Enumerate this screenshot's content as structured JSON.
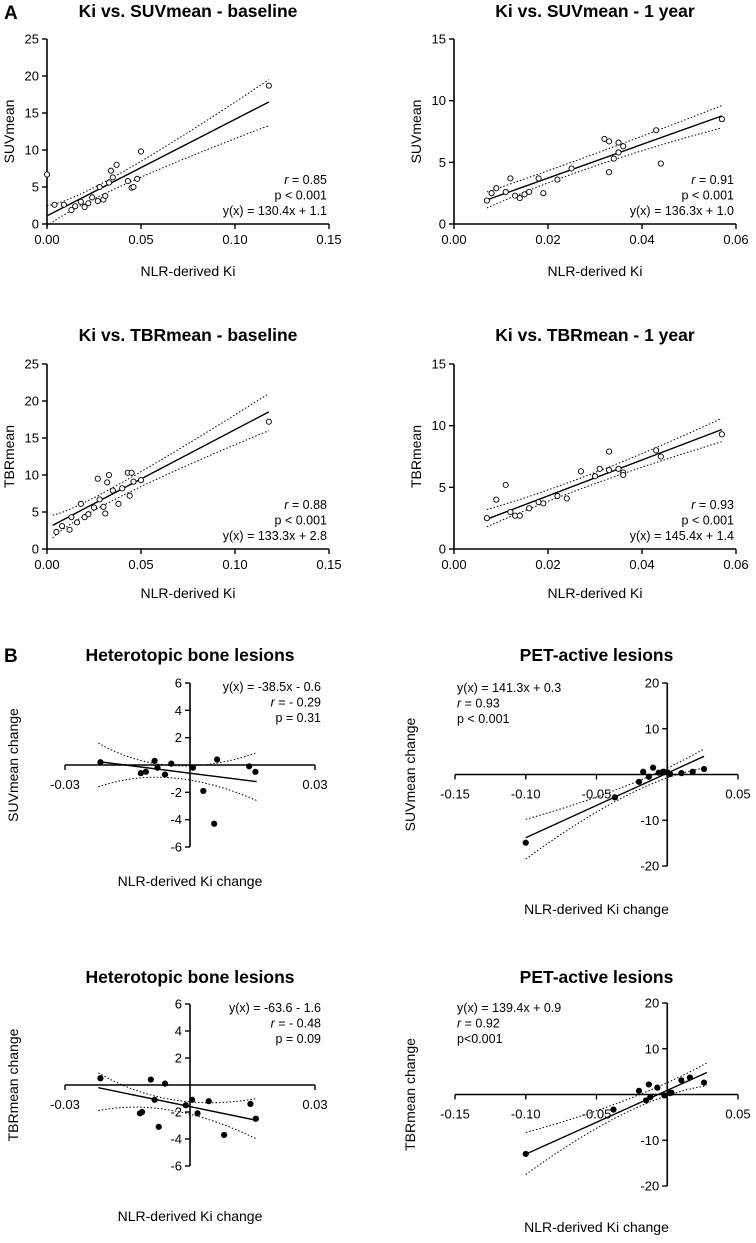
{
  "panel_labels": {
    "a": "A",
    "b": "B"
  },
  "chart_data": [
    {
      "id": "a1",
      "type": "scatter",
      "title": "Ki vs. SUVmean - baseline",
      "xlabel": "NLR-derived Ki",
      "ylabel": "SUVmean",
      "xlim": [
        0,
        0.15
      ],
      "ylim": [
        0,
        25
      ],
      "xticks": [
        0,
        0.05,
        0.1,
        0.15
      ],
      "xticklabels": [
        "0.00",
        "0.05",
        "0.10",
        "0.15"
      ],
      "yticks": [
        0,
        5,
        10,
        15,
        20,
        25
      ],
      "yticklabels": [
        "0",
        "5",
        "10",
        "15",
        "20",
        "25"
      ],
      "marker": "open",
      "points": [
        [
          0.0,
          6.7
        ],
        [
          0.004,
          2.6
        ],
        [
          0.009,
          2.6
        ],
        [
          0.013,
          1.9
        ],
        [
          0.015,
          2.4
        ],
        [
          0.018,
          3.0
        ],
        [
          0.02,
          2.3
        ],
        [
          0.022,
          2.8
        ],
        [
          0.024,
          3.6
        ],
        [
          0.027,
          3.1
        ],
        [
          0.028,
          5.0
        ],
        [
          0.03,
          3.3
        ],
        [
          0.031,
          3.8
        ],
        [
          0.033,
          5.6
        ],
        [
          0.034,
          7.2
        ],
        [
          0.035,
          6.3
        ],
        [
          0.037,
          8.0
        ],
        [
          0.043,
          5.8
        ],
        [
          0.045,
          4.9
        ],
        [
          0.046,
          5.0
        ],
        [
          0.048,
          6.1
        ],
        [
          0.05,
          9.8
        ],
        [
          0.118,
          18.7
        ]
      ],
      "fit": {
        "slope": 130.4,
        "intercept": 1.1,
        "x_range": [
          0.0,
          0.118
        ]
      },
      "ci": {
        "lower": [
          [
            0.0,
            -0.3
          ],
          [
            0.04,
            5.2
          ],
          [
            0.118,
            13.3
          ]
        ],
        "upper": [
          [
            0.0,
            2.5
          ],
          [
            0.04,
            7.0
          ],
          [
            0.118,
            19.5
          ]
        ]
      },
      "stats": {
        "r_label": "r",
        "r_value": " = 0.85",
        "p": "p < 0.001",
        "eq": "y(x) = 130.4x + 1.1"
      },
      "stats_pos": "bottom-right"
    },
    {
      "id": "a2",
      "type": "scatter",
      "title": "Ki vs. SUVmean - 1 year",
      "xlabel": "NLR-derived Ki",
      "ylabel": "SUVmean",
      "xlim": [
        0,
        0.06
      ],
      "ylim": [
        0,
        15
      ],
      "xticks": [
        0,
        0.02,
        0.04,
        0.06
      ],
      "xticklabels": [
        "0.00",
        "0.02",
        "0.04",
        "0.06"
      ],
      "yticks": [
        0,
        5,
        10,
        15
      ],
      "yticklabels": [
        "0",
        "5",
        "10",
        "15"
      ],
      "marker": "open",
      "points": [
        [
          0.007,
          1.9
        ],
        [
          0.008,
          2.5
        ],
        [
          0.009,
          2.9
        ],
        [
          0.011,
          2.6
        ],
        [
          0.012,
          3.7
        ],
        [
          0.013,
          2.3
        ],
        [
          0.014,
          2.1
        ],
        [
          0.015,
          2.4
        ],
        [
          0.016,
          2.6
        ],
        [
          0.018,
          3.7
        ],
        [
          0.019,
          2.5
        ],
        [
          0.022,
          3.6
        ],
        [
          0.025,
          4.5
        ],
        [
          0.032,
          6.9
        ],
        [
          0.033,
          4.2
        ],
        [
          0.033,
          6.7
        ],
        [
          0.034,
          5.3
        ],
        [
          0.035,
          5.8
        ],
        [
          0.035,
          6.6
        ],
        [
          0.036,
          6.3
        ],
        [
          0.043,
          7.6
        ],
        [
          0.044,
          4.9
        ],
        [
          0.057,
          8.5
        ]
      ],
      "fit": {
        "slope": 136.3,
        "intercept": 1.0,
        "x_range": [
          0.007,
          0.057
        ]
      },
      "ci": {
        "lower": [
          [
            0.007,
            1.3
          ],
          [
            0.03,
            4.7
          ],
          [
            0.057,
            7.8
          ]
        ],
        "upper": [
          [
            0.007,
            2.6
          ],
          [
            0.03,
            5.7
          ],
          [
            0.057,
            9.6
          ]
        ]
      },
      "stats": {
        "r_label": "r",
        "r_value": " = 0.91",
        "p": "p < 0.001",
        "eq": "y(x) = 136.3x + 1.0"
      },
      "stats_pos": "bottom-right"
    },
    {
      "id": "a3",
      "type": "scatter",
      "title": "Ki vs. TBRmean - baseline",
      "xlabel": "NLR-derived Ki",
      "ylabel": "TBRmean",
      "xlim": [
        0,
        0.15
      ],
      "ylim": [
        0,
        25
      ],
      "xticks": [
        0,
        0.05,
        0.1,
        0.15
      ],
      "xticklabels": [
        "0.00",
        "0.05",
        "0.10",
        "0.15"
      ],
      "yticks": [
        0,
        5,
        10,
        15,
        20,
        25
      ],
      "yticklabels": [
        "0",
        "5",
        "10",
        "15",
        "20",
        "25"
      ],
      "marker": "open",
      "points": [
        [
          0.005,
          2.3
        ],
        [
          0.008,
          3.1
        ],
        [
          0.012,
          2.6
        ],
        [
          0.013,
          4.3
        ],
        [
          0.016,
          3.6
        ],
        [
          0.018,
          6.1
        ],
        [
          0.02,
          4.3
        ],
        [
          0.022,
          4.7
        ],
        [
          0.025,
          5.6
        ],
        [
          0.027,
          9.5
        ],
        [
          0.028,
          6.7
        ],
        [
          0.03,
          5.7
        ],
        [
          0.031,
          4.8
        ],
        [
          0.032,
          9.0
        ],
        [
          0.033,
          10.0
        ],
        [
          0.035,
          7.9
        ],
        [
          0.038,
          6.1
        ],
        [
          0.04,
          8.2
        ],
        [
          0.043,
          10.3
        ],
        [
          0.044,
          7.2
        ],
        [
          0.045,
          10.3
        ],
        [
          0.046,
          9.1
        ],
        [
          0.05,
          9.3
        ],
        [
          0.118,
          17.2
        ]
      ],
      "fit": {
        "slope": 133.3,
        "intercept": 2.8,
        "x_range": [
          0.003,
          0.118
        ]
      },
      "ci": {
        "lower": [
          [
            0.003,
            1.5
          ],
          [
            0.04,
            7.2
          ],
          [
            0.118,
            16.0
          ]
        ],
        "upper": [
          [
            0.003,
            4.6
          ],
          [
            0.04,
            9.0
          ],
          [
            0.118,
            21.0
          ]
        ]
      },
      "stats": {
        "r_label": "r",
        "r_value": " = 0.88",
        "p": "p < 0.001",
        "eq": "y(x) = 133.3x + 2.8"
      },
      "stats_pos": "bottom-right"
    },
    {
      "id": "a4",
      "type": "scatter",
      "title": "Ki vs. TBRmean - 1 year",
      "xlabel": "NLR-derived Ki",
      "ylabel": "TBRmean",
      "xlim": [
        0,
        0.06
      ],
      "ylim": [
        0,
        15
      ],
      "xticks": [
        0,
        0.02,
        0.04,
        0.06
      ],
      "xticklabels": [
        "0.00",
        "0.02",
        "0.04",
        "0.06"
      ],
      "yticks": [
        0,
        5,
        10,
        15
      ],
      "yticklabels": [
        "0",
        "5",
        "10",
        "15"
      ],
      "marker": "open",
      "points": [
        [
          0.007,
          2.5
        ],
        [
          0.009,
          4.0
        ],
        [
          0.011,
          5.2
        ],
        [
          0.012,
          3.0
        ],
        [
          0.013,
          2.7
        ],
        [
          0.014,
          2.7
        ],
        [
          0.016,
          3.3
        ],
        [
          0.018,
          3.8
        ],
        [
          0.019,
          3.7
        ],
        [
          0.022,
          4.3
        ],
        [
          0.024,
          4.1
        ],
        [
          0.027,
          6.3
        ],
        [
          0.03,
          5.9
        ],
        [
          0.031,
          6.5
        ],
        [
          0.033,
          7.9
        ],
        [
          0.033,
          6.4
        ],
        [
          0.035,
          6.5
        ],
        [
          0.036,
          6.2
        ],
        [
          0.036,
          6.0
        ],
        [
          0.043,
          8.0
        ],
        [
          0.044,
          7.5
        ],
        [
          0.057,
          9.3
        ]
      ],
      "fit": {
        "slope": 145.4,
        "intercept": 1.4,
        "x_range": [
          0.007,
          0.057
        ]
      },
      "ci": {
        "lower": [
          [
            0.007,
            1.8
          ],
          [
            0.03,
            5.3
          ],
          [
            0.057,
            8.7
          ]
        ],
        "upper": [
          [
            0.007,
            3.2
          ],
          [
            0.03,
            6.2
          ],
          [
            0.057,
            10.6
          ]
        ]
      },
      "stats": {
        "r_label": "r",
        "r_value": " = 0.93",
        "p": "p < 0.001",
        "eq": "y(x) = 145.4x + 1.4"
      },
      "stats_pos": "bottom-right"
    },
    {
      "id": "b1",
      "type": "scatter",
      "title": "Heterotopic bone lesions",
      "xlabel": "NLR-derived Ki change",
      "ylabel": "SUVmean change",
      "xlim": [
        -0.03,
        0.03
      ],
      "ylim": [
        -6,
        6
      ],
      "xticks": [
        -0.03,
        0.03
      ],
      "xticklabels": [
        "-0.03",
        "0.03"
      ],
      "yticks": [
        -6,
        -4,
        -2,
        2,
        4,
        6
      ],
      "yticklabels": [
        "-6",
        "-4",
        "-2",
        "2",
        "4",
        "6"
      ],
      "marker": "solid",
      "points": [
        [
          -0.0215,
          0.2
        ],
        [
          -0.0118,
          -0.6
        ],
        [
          -0.0106,
          -0.5
        ],
        [
          -0.0085,
          0.3
        ],
        [
          -0.0078,
          -0.2
        ],
        [
          -0.006,
          -0.7
        ],
        [
          -0.0045,
          0.1
        ],
        [
          0.0007,
          -0.2
        ],
        [
          0.0032,
          -1.9
        ],
        [
          0.0058,
          -4.3
        ],
        [
          0.0065,
          0.4
        ],
        [
          0.0142,
          -0.1
        ],
        [
          0.0157,
          -0.5
        ]
      ],
      "fit": {
        "slope": -38.5,
        "intercept": -0.6,
        "x_range": [
          -0.022,
          0.016
        ]
      },
      "ci": {
        "lower": [
          [
            -0.022,
            -1.6
          ],
          [
            -0.004,
            -0.95
          ],
          [
            0.016,
            -2.6
          ]
        ],
        "upper": [
          [
            -0.022,
            1.6
          ],
          [
            -0.004,
            -0.05
          ],
          [
            0.016,
            0.9
          ]
        ]
      },
      "stats": {
        "r_label": "r",
        "r_value": " = - 0.29",
        "p": "p = 0.31",
        "eq": "y(x) = -38.5x - 0.6"
      },
      "stats_pos": "top-right"
    },
    {
      "id": "b2",
      "type": "scatter",
      "title": "PET-active lesions",
      "xlabel": "NLR-derived Ki change",
      "ylabel": "SUVmean change",
      "xlim": [
        -0.15,
        0.05
      ],
      "ylim": [
        -20,
        20
      ],
      "xticks": [
        -0.15,
        -0.1,
        -0.05,
        0.05
      ],
      "xticklabels": [
        "-0.15",
        "-0.10",
        "-0.05",
        "0.05"
      ],
      "yticks": [
        -20,
        -10,
        10,
        20
      ],
      "yticklabels": [
        "-20",
        "-10",
        "10",
        "20"
      ],
      "marker": "solid",
      "points": [
        [
          -0.1,
          -14.9
        ],
        [
          -0.037,
          -5.0
        ],
        [
          -0.02,
          -1.6
        ],
        [
          -0.017,
          0.6
        ],
        [
          -0.013,
          -0.5
        ],
        [
          -0.01,
          1.5
        ],
        [
          -0.006,
          0.4
        ],
        [
          -0.003,
          0.6
        ],
        [
          0.0,
          0.5
        ],
        [
          0.002,
          0.1
        ],
        [
          0.01,
          0.3
        ],
        [
          0.018,
          0.6
        ],
        [
          0.026,
          1.2
        ]
      ],
      "fit": {
        "slope": 141.3,
        "intercept": 0.3,
        "x_range": [
          -0.1,
          0.026
        ]
      },
      "ci": {
        "lower": [
          [
            -0.1,
            -18.5
          ],
          [
            -0.03,
            -4.8
          ],
          [
            0.026,
            1.4
          ]
        ],
        "upper": [
          [
            -0.1,
            -9.8
          ],
          [
            -0.03,
            -2.6
          ],
          [
            0.026,
            5.6
          ]
        ]
      },
      "stats": {
        "r_label": "r",
        "r_value": " = 0.93",
        "p": "p < 0.001",
        "eq": "y(x) = 141.3x + 0.3"
      },
      "stats_pos": "top-left"
    },
    {
      "id": "b3",
      "type": "scatter",
      "title": "Heterotopic bone lesions",
      "xlabel": "NLR-derived Ki change",
      "ylabel": "TBRmean change",
      "xlim": [
        -0.03,
        0.03
      ],
      "ylim": [
        -6,
        6
      ],
      "xticks": [
        -0.03,
        0.03
      ],
      "xticklabels": [
        "-0.03",
        "0.03"
      ],
      "yticks": [
        -6,
        -4,
        -2,
        2,
        4,
        6
      ],
      "yticklabels": [
        "-6",
        "-4",
        "-2",
        "2",
        "4",
        "6"
      ],
      "marker": "solid",
      "points": [
        [
          -0.0215,
          0.5
        ],
        [
          -0.012,
          -2.1
        ],
        [
          -0.0115,
          -2.0
        ],
        [
          -0.0094,
          0.4
        ],
        [
          -0.0085,
          -1.1
        ],
        [
          -0.0075,
          -3.1
        ],
        [
          -0.006,
          0.1
        ],
        [
          -0.001,
          -1.5
        ],
        [
          0.0005,
          -1.1
        ],
        [
          0.0018,
          -2.1
        ],
        [
          0.0045,
          -1.2
        ],
        [
          0.0082,
          -3.7
        ],
        [
          0.0145,
          -1.4
        ],
        [
          0.0158,
          -2.5
        ]
      ],
      "fit": {
        "slope": -63.6,
        "intercept": -1.6,
        "x_range": [
          -0.022,
          0.016
        ]
      },
      "ci": {
        "lower": [
          [
            -0.022,
            -1.9
          ],
          [
            -0.004,
            -1.9
          ],
          [
            0.016,
            -4.0
          ]
        ],
        "upper": [
          [
            -0.022,
            0.9
          ],
          [
            -0.004,
            -1.1
          ],
          [
            0.016,
            -1.0
          ]
        ]
      },
      "stats": {
        "r_label": "r",
        "r_value": " = - 0.48",
        "p": "p = 0.09",
        "eq": "y(x) = -63.6 - 1.6"
      },
      "stats_pos": "top-right"
    },
    {
      "id": "b4",
      "type": "scatter",
      "title": "PET-active lesions",
      "xlabel": "NLR-derived Ki change",
      "ylabel": "TBRmean change",
      "xlim": [
        -0.15,
        0.05
      ],
      "ylim": [
        -20,
        20
      ],
      "xticks": [
        -0.15,
        -0.1,
        -0.05,
        0.05
      ],
      "xticklabels": [
        "-0.15",
        "-0.10",
        "-0.05",
        "0.05"
      ],
      "yticks": [
        -20,
        -10,
        10,
        20
      ],
      "yticklabels": [
        "-20",
        "-10",
        "10",
        "20"
      ],
      "marker": "solid",
      "points": [
        [
          -0.1,
          -13.0
        ],
        [
          -0.038,
          -3.3
        ],
        [
          -0.02,
          0.8
        ],
        [
          -0.015,
          -1.3
        ],
        [
          -0.013,
          2.2
        ],
        [
          -0.012,
          -0.6
        ],
        [
          -0.007,
          1.5
        ],
        [
          -0.002,
          -0.2
        ],
        [
          0.002,
          0.3
        ],
        [
          0.003,
          0.4
        ],
        [
          0.01,
          3.1
        ],
        [
          0.016,
          3.7
        ],
        [
          0.026,
          2.6
        ]
      ],
      "fit": {
        "slope": 139.4,
        "intercept": 0.9,
        "x_range": [
          -0.1,
          0.028
        ]
      },
      "ci": {
        "lower": [
          [
            -0.1,
            -17.5
          ],
          [
            -0.03,
            -4.1
          ],
          [
            0.028,
            1.9
          ]
        ],
        "upper": [
          [
            -0.1,
            -8.3
          ],
          [
            -0.03,
            -1.3
          ],
          [
            0.028,
            6.9
          ]
        ]
      },
      "stats": {
        "r_label": "r",
        "r_value": " = 0.92",
        "p": "p<0.001",
        "eq": "y(x) = 139.4x + 0.9"
      },
      "stats_pos": "top-left"
    }
  ]
}
